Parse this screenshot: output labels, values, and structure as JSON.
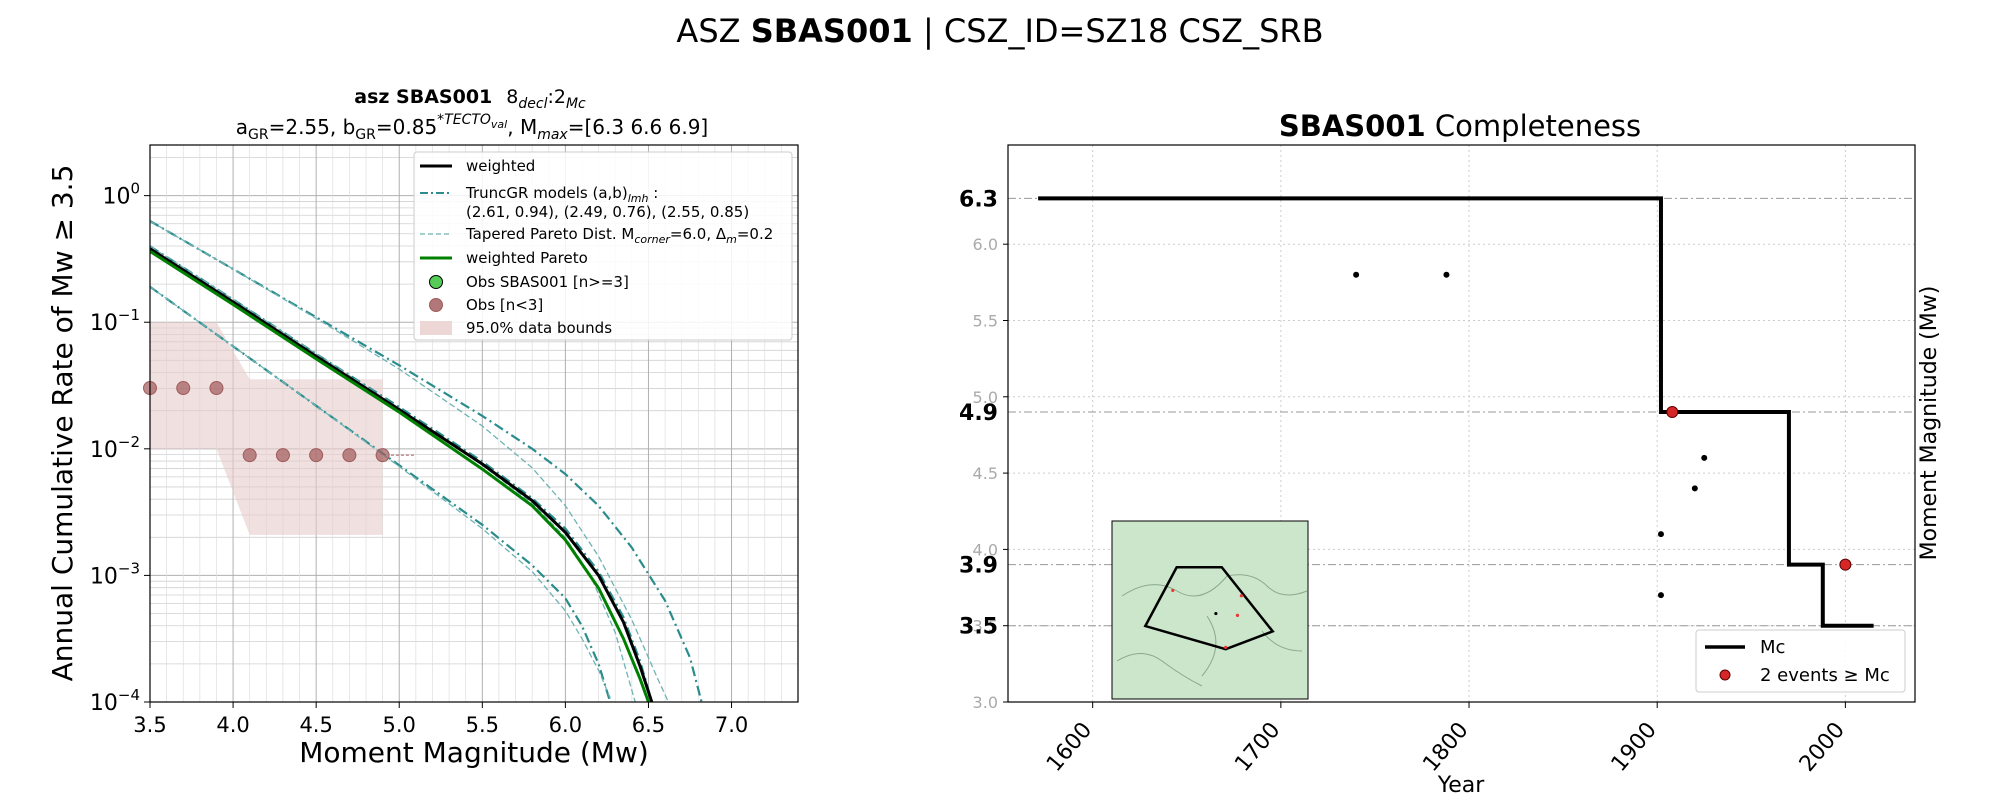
{
  "suptitle": {
    "prefix": "ASZ ",
    "bold": "SBAS001",
    "suffix": " | CSZ_ID=SZ18 CSZ_SRB"
  },
  "chart_data": [
    {
      "type": "line",
      "title_line1": {
        "bold": "asz SBAS001",
        "rest": "8",
        "sub1": "decl",
        "mid": ":2",
        "sub2": "Mc"
      },
      "title_line2": {
        "a": "a",
        "a_sub": "GR",
        "a_val": "=2.55,  b",
        "b_sub": "GR",
        "b_val": "=0.85",
        "b_sup": "*TECTO",
        "b_sup_sub": "val",
        "m": ", M",
        "m_sub": "max",
        "m_val": "=[6.3 6.6 6.9]"
      },
      "xlabel": "Moment Magnitude (Mw)",
      "ylabel": "Annual Cumulative Rate of Mw  ≥  3.5",
      "xlim": [
        3.5,
        7.4
      ],
      "ylim_log10": [
        -4,
        0.4
      ],
      "xticks": [
        "3.5",
        "4.0",
        "4.5",
        "5.0",
        "5.5",
        "6.0",
        "6.5",
        "7.0"
      ],
      "yticks": [
        {
          "base": "10",
          "exp": "0",
          "v": 0
        },
        {
          "base": "10",
          "exp": "−1",
          "v": -1
        },
        {
          "base": "10",
          "exp": "−2",
          "v": -2
        },
        {
          "base": "10",
          "exp": "−3",
          "v": -3
        },
        {
          "base": "10",
          "exp": "−4",
          "v": -4
        }
      ],
      "grid": true,
      "legend_position": "top-right",
      "legend": [
        {
          "label": "weighted",
          "style": "black-solid"
        },
        {
          "label": "TruncGR models (a,b)",
          "sub": "lmh",
          "tail": " :",
          "label2": " (2.61, 0.94), (2.49, 0.76), (2.55, 0.85)",
          "style": "teal-dashdot"
        },
        {
          "label": "Tapered Pareto Dist. M",
          "sub": "corner",
          "tail": "=6.0, Δ",
          "sub2": "m",
          "tail2": "=0.2",
          "style": "teal-dashed-thin"
        },
        {
          "label": "weighted Pareto",
          "style": "green-solid"
        },
        {
          "label": "Obs SBAS001 [n>=3]",
          "style": "green-marker"
        },
        {
          "label": "Obs [n<3]",
          "style": "brown-marker"
        },
        {
          "label": "95.0% data bounds",
          "style": "pink-fill"
        }
      ],
      "series": [
        {
          "name": "weighted",
          "color": "#000000",
          "x": [
            3.5,
            4.0,
            4.5,
            5.0,
            5.5,
            5.8,
            6.0,
            6.2,
            6.35,
            6.45,
            6.52
          ],
          "log10y": [
            -0.42,
            -0.84,
            -1.27,
            -1.69,
            -2.12,
            -2.41,
            -2.66,
            -3.0,
            -3.37,
            -3.72,
            -4.0
          ]
        },
        {
          "name": "weighted Pareto",
          "color": "#008000",
          "x": [
            3.5,
            4.0,
            4.5,
            5.0,
            5.5,
            5.8,
            6.0,
            6.2,
            6.35,
            6.45,
            6.5
          ],
          "log10y": [
            -0.44,
            -0.86,
            -1.29,
            -1.71,
            -2.16,
            -2.45,
            -2.72,
            -3.1,
            -3.5,
            -3.82,
            -4.0
          ]
        }
      ],
      "gr_models": [
        {
          "x": [
            3.5,
            4.0,
            4.5,
            5.0,
            5.5,
            5.8,
            6.0,
            6.2,
            6.4,
            6.6,
            6.75,
            6.82
          ],
          "log10y": [
            -0.2,
            -0.58,
            -0.96,
            -1.34,
            -1.74,
            -2.0,
            -2.2,
            -2.45,
            -2.78,
            -3.2,
            -3.65,
            -4.0
          ]
        },
        {
          "x": [
            3.5,
            4.0,
            4.5,
            5.0,
            5.5,
            5.8,
            6.0,
            6.2,
            6.35,
            6.45,
            6.52
          ],
          "log10y": [
            -0.4,
            -0.82,
            -1.25,
            -1.67,
            -2.1,
            -2.39,
            -2.63,
            -2.97,
            -3.33,
            -3.68,
            -4.0
          ]
        },
        {
          "x": [
            3.5,
            4.0,
            4.5,
            5.0,
            5.5,
            5.8,
            6.0,
            6.1,
            6.2,
            6.27
          ],
          "log10y": [
            -0.72,
            -1.19,
            -1.66,
            -2.13,
            -2.6,
            -2.92,
            -3.18,
            -3.4,
            -3.7,
            -4.0
          ]
        }
      ],
      "pareto_models": [
        {
          "x": [
            3.5,
            4.0,
            4.5,
            5.0,
            5.5,
            5.8,
            6.0,
            6.2,
            6.4,
            6.55,
            6.62
          ],
          "log10y": [
            -0.2,
            -0.58,
            -0.97,
            -1.37,
            -1.82,
            -2.15,
            -2.45,
            -2.85,
            -3.35,
            -3.8,
            -4.0
          ]
        },
        {
          "x": [
            3.5,
            4.0,
            4.5,
            5.0,
            5.5,
            5.8,
            6.0,
            6.15,
            6.3,
            6.42
          ],
          "log10y": [
            -0.4,
            -0.82,
            -1.25,
            -1.68,
            -2.13,
            -2.43,
            -2.7,
            -3.0,
            -3.45,
            -4.0
          ]
        },
        {
          "x": [
            3.5,
            4.0,
            4.5,
            5.0,
            5.5,
            5.8,
            6.0,
            6.1,
            6.2,
            6.28
          ],
          "log10y": [
            -0.72,
            -1.19,
            -1.66,
            -2.14,
            -2.63,
            -2.97,
            -3.28,
            -3.5,
            -3.75,
            -4.0
          ]
        }
      ],
      "obs_n_lt_3": {
        "color": "#a05a5a",
        "x": [
          3.5,
          3.7,
          3.9,
          4.1,
          4.3,
          4.5,
          4.7,
          4.9
        ],
        "log10y": [
          -1.52,
          -1.52,
          -1.52,
          -2.05,
          -2.05,
          -2.05,
          -2.05,
          -2.05
        ]
      },
      "data_bounds": {
        "color": "#e8cccc",
        "x": [
          3.5,
          3.9,
          4.1,
          4.9
        ],
        "upper_log10": [
          -1.0,
          -1.0,
          -1.45,
          -1.45
        ],
        "lower_log10": [
          -2.0,
          -2.0,
          -2.68,
          -2.68
        ]
      }
    },
    {
      "type": "step",
      "title": {
        "bold": "SBAS001",
        "rest": " Completeness"
      },
      "xlabel": "Year",
      "ylabel": "Moment Magnitude (Mw)",
      "xlim": [
        1555,
        2037
      ],
      "ylim": [
        3.0,
        6.65
      ],
      "xticks": [
        "1600",
        "1700",
        "1800",
        "1900",
        "2000"
      ],
      "yticks_minor": [
        "3.0",
        "3.5",
        "4.0",
        "4.5",
        "5.0",
        "5.5",
        "6.0"
      ],
      "yticks_major": [
        "3.5",
        "3.9",
        "4.9",
        "6.3"
      ],
      "grid": true,
      "legend_position": "bottom-right",
      "legend": [
        {
          "label": "Mc",
          "style": "black-step"
        },
        {
          "label": "2 events  ≥  Mc",
          "style": "red-marker"
        }
      ],
      "mc_steps": [
        {
          "x": 1571,
          "y": 6.3
        },
        {
          "x": 1902,
          "y": 6.3
        },
        {
          "x": 1902,
          "y": 4.9
        },
        {
          "x": 1970,
          "y": 4.9
        },
        {
          "x": 1970,
          "y": 3.9
        },
        {
          "x": 1988,
          "y": 3.9
        },
        {
          "x": 1988,
          "y": 3.5
        },
        {
          "x": 2015,
          "y": 3.5
        }
      ],
      "events_black": [
        {
          "x": 1740,
          "y": 5.8
        },
        {
          "x": 1788,
          "y": 5.8
        },
        {
          "x": 1902,
          "y": 4.1
        },
        {
          "x": 1902,
          "y": 3.7
        },
        {
          "x": 1920,
          "y": 4.4
        },
        {
          "x": 1925,
          "y": 4.6
        }
      ],
      "events_red": [
        {
          "x": 1908,
          "y": 4.9
        },
        {
          "x": 2000,
          "y": 3.9
        }
      ],
      "inset": {
        "fill": "#cce6cc",
        "polygon": [
          [
            0.33,
            0.26
          ],
          [
            0.56,
            0.26
          ],
          [
            0.82,
            0.62
          ],
          [
            0.58,
            0.72
          ],
          [
            0.17,
            0.59
          ]
        ],
        "events": [
          [
            0.31,
            0.39
          ],
          [
            0.66,
            0.42
          ],
          [
            0.53,
            0.52
          ],
          [
            0.64,
            0.53
          ],
          [
            0.58,
            0.71
          ]
        ]
      }
    }
  ]
}
